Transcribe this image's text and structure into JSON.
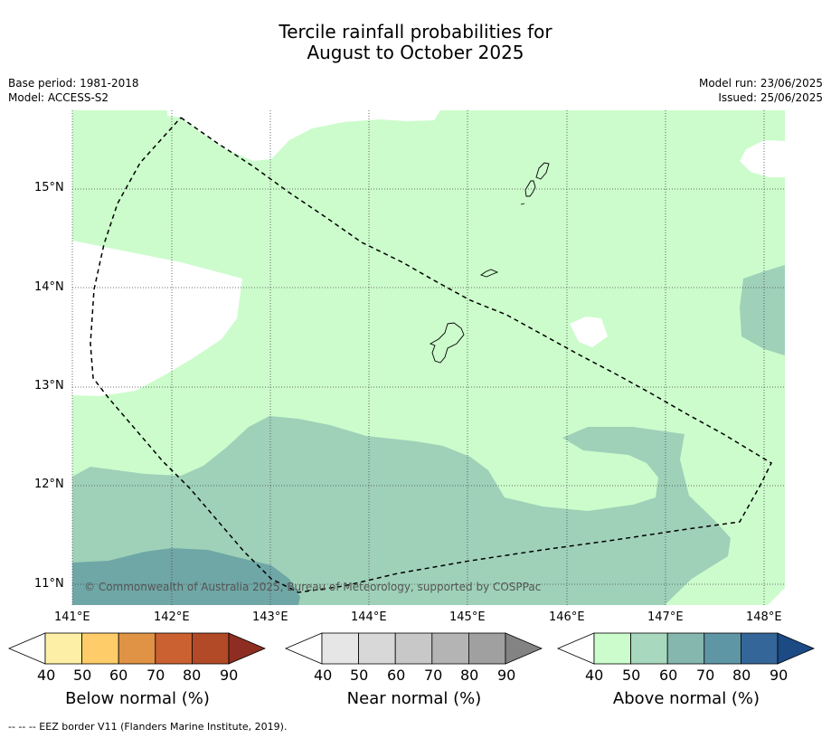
{
  "title": {
    "line1": "Tercile rainfall probabilities for",
    "line2": "August to October 2025"
  },
  "meta": {
    "base_period": "Base period: 1981-2018",
    "model": "Model: ACCESS-S2",
    "model_run": "Model run: 23/06/2025",
    "issued": "Issued: 25/06/2025"
  },
  "map": {
    "lat_labels": [
      "15°N",
      "14°N",
      "13°N",
      "12°N",
      "11°N"
    ],
    "lon_labels": [
      "141°E",
      "142°E",
      "143°E",
      "144°E",
      "145°E",
      "146°E",
      "147°E",
      "148°E"
    ],
    "copyright": "© Commonwealth of Australia 2025, Bureau of Meteorology, supported by COSPPac",
    "colors": {
      "above_50": "#ccfccc",
      "above_60": "#9fd1b9",
      "above_70": "#6fa7a6",
      "coast": "#000000"
    }
  },
  "colorbars": {
    "below": {
      "label": "Below normal (%)",
      "ticks": [
        "40",
        "50",
        "60",
        "70",
        "80",
        "90"
      ],
      "colors": [
        "#ffffff",
        "#fdf0a6",
        "#fecc69",
        "#e19345",
        "#cb6130",
        "#b24a27",
        "#8e2e22"
      ]
    },
    "near": {
      "label": "Near normal (%)",
      "ticks": [
        "40",
        "50",
        "60",
        "70",
        "80",
        "90"
      ],
      "colors": [
        "#ffffff",
        "#e6e6e6",
        "#d8d8d8",
        "#c8c8c8",
        "#b4b4b4",
        "#a0a0a0",
        "#838383"
      ]
    },
    "above": {
      "label": "Above normal (%)",
      "ticks": [
        "40",
        "50",
        "60",
        "70",
        "80",
        "90"
      ],
      "colors": [
        "#ffffff",
        "#ccfccc",
        "#a8d8bd",
        "#85b7af",
        "#5f96a6",
        "#356699",
        "#1b4a85"
      ]
    }
  },
  "footnote": "--  --  -- EEZ border V11 (Flanders Marine Institute, 2019)."
}
